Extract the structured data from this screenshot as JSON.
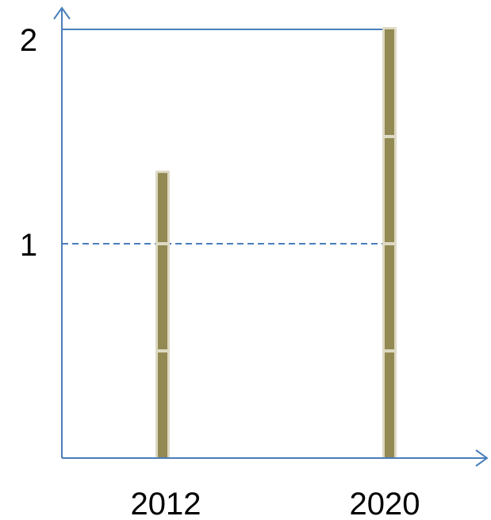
{
  "chart_data": {
    "type": "bar",
    "categories": [
      "2012",
      "2020"
    ],
    "values": [
      1.33,
      2.0
    ],
    "segment_boundaries": [
      [
        0.5,
        1.0,
        1.33
      ],
      [
        0.5,
        1.0,
        1.5,
        2.0
      ]
    ],
    "yticks": [
      "1",
      "2"
    ],
    "ylim": [
      0,
      2
    ],
    "reference_lines": [
      {
        "y": 1,
        "style": "dashed"
      },
      {
        "y": 2,
        "style": "solid"
      }
    ],
    "grid": false,
    "title": "",
    "xlabel": "",
    "ylabel": "",
    "colors": {
      "axis": "#4a7ebb",
      "bar_fill": "#938953",
      "bar_outline": "#ddd9c3",
      "tick_text": "#000000"
    }
  }
}
